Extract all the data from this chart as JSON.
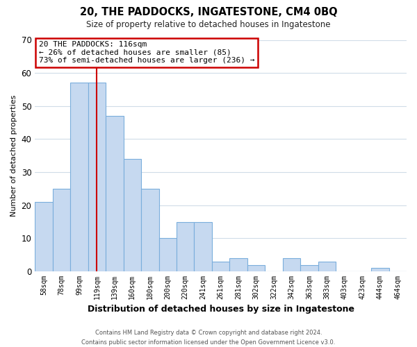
{
  "title": "20, THE PADDOCKS, INGATESTONE, CM4 0BQ",
  "subtitle": "Size of property relative to detached houses in Ingatestone",
  "xlabel": "Distribution of detached houses by size in Ingatestone",
  "ylabel": "Number of detached properties",
  "bar_labels": [
    "58sqm",
    "78sqm",
    "99sqm",
    "119sqm",
    "139sqm",
    "160sqm",
    "180sqm",
    "200sqm",
    "220sqm",
    "241sqm",
    "261sqm",
    "281sqm",
    "302sqm",
    "322sqm",
    "342sqm",
    "363sqm",
    "383sqm",
    "403sqm",
    "423sqm",
    "444sqm",
    "464sqm"
  ],
  "bar_values": [
    21,
    25,
    57,
    57,
    47,
    34,
    25,
    10,
    15,
    15,
    3,
    4,
    2,
    0,
    4,
    2,
    3,
    0,
    0,
    1,
    0
  ],
  "bar_color": "#c6d9f0",
  "bar_edge_color": "#7aaedc",
  "ylim": [
    0,
    70
  ],
  "yticks": [
    0,
    10,
    20,
    30,
    40,
    50,
    60,
    70
  ],
  "red_line_index": 3,
  "annotation_title": "20 THE PADDOCKS: 116sqm",
  "annotation_line1": "← 26% of detached houses are smaller (85)",
  "annotation_line2": "73% of semi-detached houses are larger (236) →",
  "annotation_box_color": "#ffffff",
  "annotation_box_edge": "#cc0000",
  "red_line_color": "#cc0000",
  "footer1": "Contains HM Land Registry data © Crown copyright and database right 2024.",
  "footer2": "Contains public sector information licensed under the Open Government Licence v3.0.",
  "grid_color": "#d0dce8",
  "background_color": "#ffffff"
}
